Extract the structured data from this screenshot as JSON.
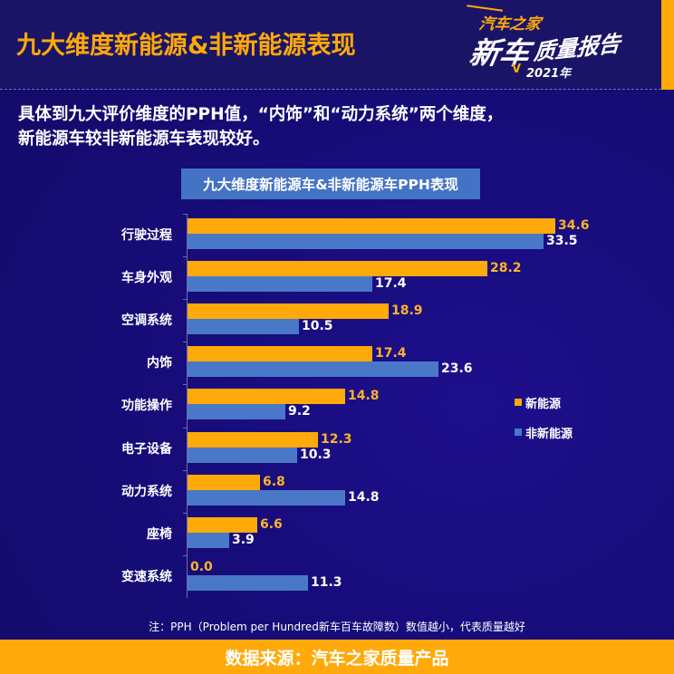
{
  "header": {
    "title": "九大维度新能源&非新能源表现",
    "logo": {
      "brand": "汽车之家",
      "big": "新车",
      "mid": "质量报告",
      "year": "2021年"
    }
  },
  "subtitle": {
    "line1": "具体到九大评价维度的PPH值，“内饰”和“动力系统”两个维度，",
    "line2": "新能源车较非新能源车表现较好。"
  },
  "colors": {
    "background": "#170c7a",
    "accent_orange": "#ffa90a",
    "series_blue": "#4a78c8",
    "title_box": "#4472c4"
  },
  "chart_data": {
    "type": "bar",
    "orientation": "horizontal",
    "title": "九大维度新能源车&非新能源车PPH表现",
    "categories": [
      "行驶过程",
      "车身外观",
      "空调系统",
      "内饰",
      "功能操作",
      "电子设备",
      "动力系统",
      "座椅",
      "变速系统"
    ],
    "series": [
      {
        "name": "新能源",
        "color": "#ffa90a",
        "values": [
          34.6,
          28.2,
          18.9,
          17.4,
          14.8,
          12.3,
          6.8,
          6.6,
          0.0
        ]
      },
      {
        "name": "非新能源",
        "color": "#4a78c8",
        "values": [
          33.5,
          17.4,
          10.5,
          23.6,
          9.2,
          10.3,
          14.8,
          3.9,
          11.3
        ]
      }
    ],
    "value_labels": {
      "nev": [
        "34.6",
        "28.2",
        "18.9",
        "17.4",
        "14.8",
        "12.3",
        "6.8",
        "6.6",
        "0.0"
      ],
      "ice": [
        "33.5",
        "17.4",
        "10.5",
        "23.6",
        "9.2",
        "10.3",
        "14.8",
        "3.9",
        "11.3"
      ]
    },
    "xlabel": "",
    "ylabel": "",
    "xlim": [
      0,
      35
    ],
    "grid": false,
    "legend_position": "right",
    "legend": [
      "新能源",
      "非新能源"
    ]
  },
  "footnote": "注：PPH（Problem per Hundred新车百车故障数）数值越小，代表质量越好",
  "footer": {
    "source": "数据来源：汽车之家质量产品"
  }
}
